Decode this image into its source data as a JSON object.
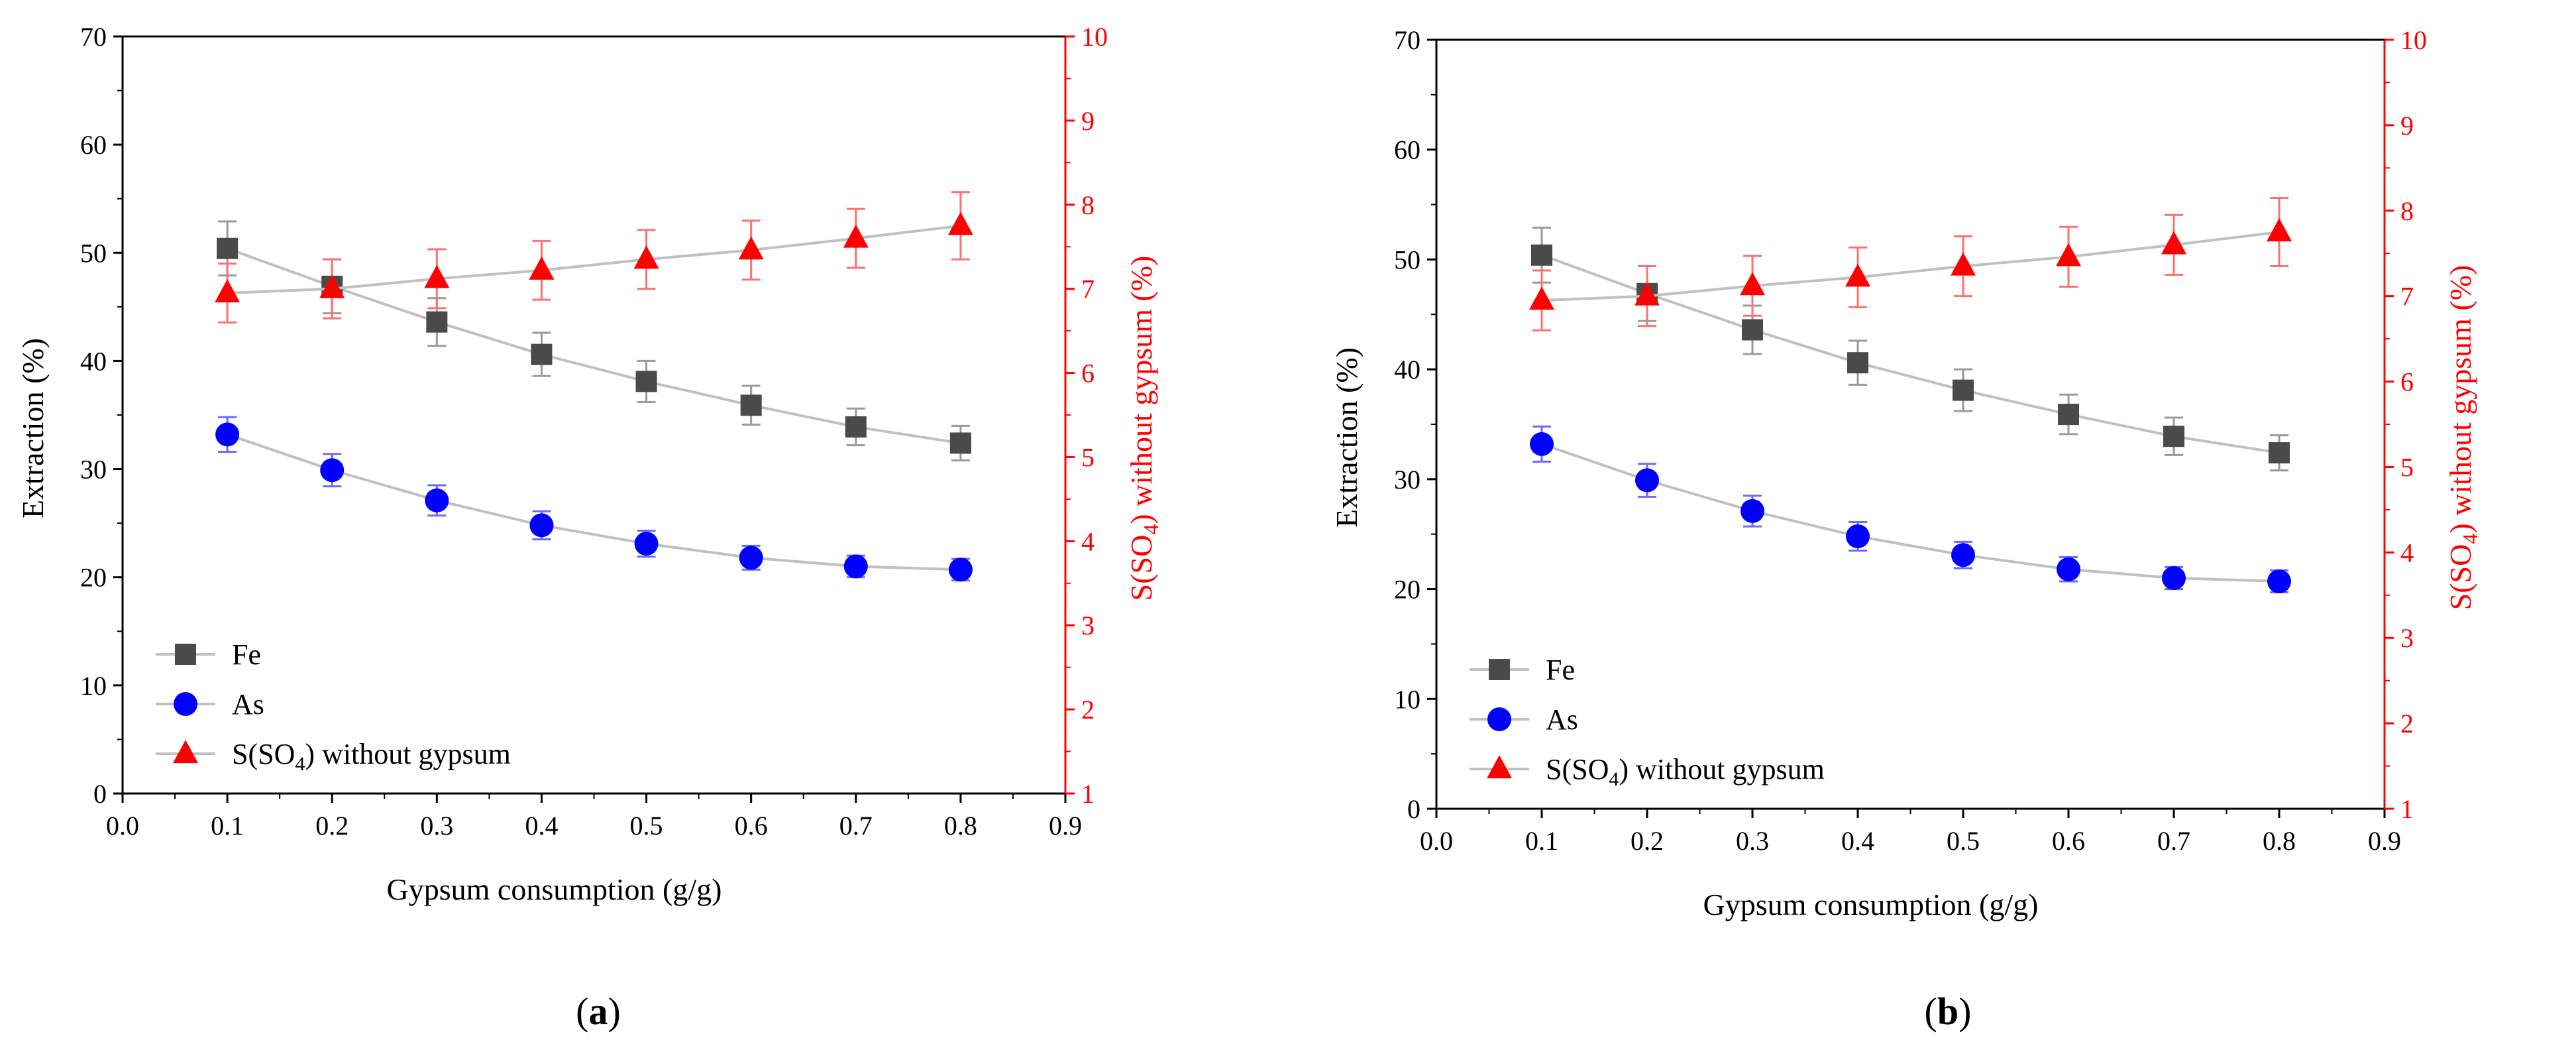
{
  "chart_data": [
    {
      "type": "line",
      "panel_label": "a",
      "xlabel": "Gypsum consumption (g/g)",
      "ylabel": "Extraction (%)",
      "y2label_prefix": "S(SO",
      "y2label_sub": "4",
      "y2label_suffix": ") without gypsum (%)",
      "xlim": [
        0.0,
        0.9
      ],
      "ylim": [
        0,
        70
      ],
      "y2lim": [
        1,
        10
      ],
      "xticks": [
        "0.0",
        "0.1",
        "0.2",
        "0.3",
        "0.4",
        "0.5",
        "0.6",
        "0.7",
        "0.8",
        "0.9"
      ],
      "yticks": [
        "0",
        "10",
        "20",
        "30",
        "40",
        "50",
        "60",
        "70"
      ],
      "y2ticks": [
        "1",
        "2",
        "3",
        "4",
        "5",
        "6",
        "7",
        "8",
        "9",
        "10"
      ],
      "x": [
        0.1,
        0.2,
        0.3,
        0.4,
        0.5,
        0.6,
        0.7,
        0.8
      ],
      "series": [
        {
          "name": "Fe",
          "axis": "left",
          "marker": "square",
          "color": "#4a4a4a",
          "errcolor": "#9a9a9a",
          "values": [
            50.4,
            46.9,
            43.6,
            40.6,
            38.1,
            35.9,
            33.9,
            32.4
          ],
          "errors": [
            2.5,
            2.5,
            2.2,
            2.0,
            1.9,
            1.8,
            1.7,
            1.6
          ]
        },
        {
          "name": "As",
          "axis": "left",
          "marker": "circle",
          "color": "#0000ff",
          "errcolor": "#6a6aff",
          "values": [
            33.2,
            29.9,
            27.1,
            24.8,
            23.1,
            21.8,
            21.0,
            20.7
          ],
          "errors": [
            1.6,
            1.5,
            1.4,
            1.3,
            1.2,
            1.1,
            1.0,
            1.0
          ]
        },
        {
          "name": "S(SO4) without gypsum",
          "legend_prefix": "S(SO",
          "legend_sub": "4",
          "legend_suffix": ") without gypsum",
          "axis": "right",
          "marker": "triangle",
          "color": "#ff0000",
          "errcolor": "#ff7070",
          "values": [
            6.95,
            7.0,
            7.12,
            7.22,
            7.35,
            7.46,
            7.6,
            7.75
          ],
          "errors": [
            0.35,
            0.35,
            0.35,
            0.35,
            0.35,
            0.35,
            0.35,
            0.4
          ]
        }
      ],
      "fit_line_color": "#c0c0c0",
      "legend_position": "bottom-left"
    },
    {
      "type": "line",
      "panel_label": "b",
      "xlabel": "Gypsum consumption (g/g)",
      "ylabel": "Extraction (%)",
      "y2label_prefix": "S(SO",
      "y2label_sub": "4",
      "y2label_suffix": ") without gypsum (%)",
      "xlim": [
        0.0,
        0.9
      ],
      "ylim": [
        0,
        70
      ],
      "y2lim": [
        1,
        10
      ],
      "xticks": [
        "0.0",
        "0.1",
        "0.2",
        "0.3",
        "0.4",
        "0.5",
        "0.6",
        "0.7",
        "0.8",
        "0.9"
      ],
      "yticks": [
        "0",
        "10",
        "20",
        "30",
        "40",
        "50",
        "60",
        "70"
      ],
      "y2ticks": [
        "1",
        "2",
        "3",
        "4",
        "5",
        "6",
        "7",
        "8",
        "9",
        "10"
      ],
      "x": [
        0.1,
        0.2,
        0.3,
        0.4,
        0.5,
        0.6,
        0.7,
        0.8
      ],
      "series": [
        {
          "name": "Fe",
          "axis": "left",
          "marker": "square",
          "color": "#4a4a4a",
          "errcolor": "#9a9a9a",
          "values": [
            50.4,
            46.9,
            43.6,
            40.6,
            38.1,
            35.9,
            33.9,
            32.4
          ],
          "errors": [
            2.5,
            2.5,
            2.2,
            2.0,
            1.9,
            1.8,
            1.7,
            1.6
          ]
        },
        {
          "name": "As",
          "axis": "left",
          "marker": "circle",
          "color": "#0000ff",
          "errcolor": "#6a6aff",
          "values": [
            33.2,
            29.9,
            27.1,
            24.8,
            23.1,
            21.8,
            21.0,
            20.7
          ],
          "errors": [
            1.6,
            1.5,
            1.4,
            1.3,
            1.2,
            1.1,
            1.0,
            1.0
          ]
        },
        {
          "name": "S(SO4) without gypsum",
          "legend_prefix": "S(SO",
          "legend_sub": "4",
          "legend_suffix": ") without gypsum",
          "axis": "right",
          "marker": "triangle",
          "color": "#ff0000",
          "errcolor": "#ff7070",
          "values": [
            6.95,
            7.0,
            7.12,
            7.22,
            7.35,
            7.46,
            7.6,
            7.75
          ],
          "errors": [
            0.35,
            0.35,
            0.35,
            0.35,
            0.35,
            0.35,
            0.35,
            0.4
          ]
        }
      ],
      "fit_line_color": "#c0c0c0",
      "legend_position": "bottom-left"
    }
  ]
}
